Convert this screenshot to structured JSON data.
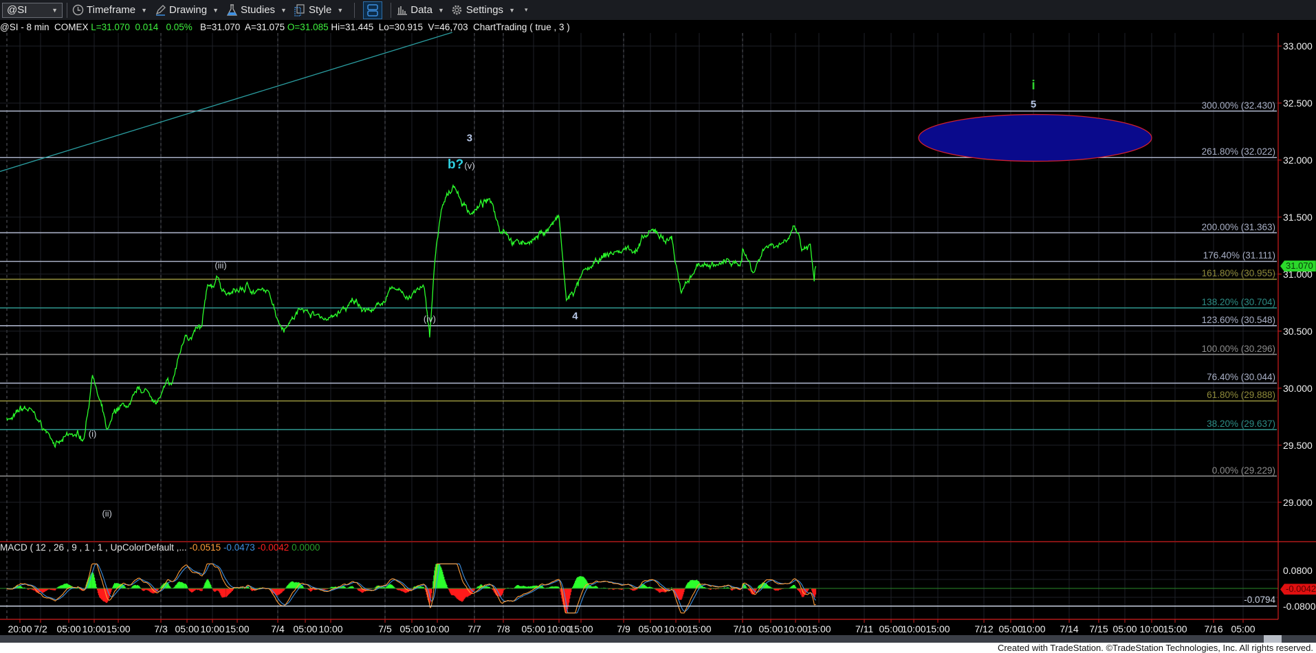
{
  "toolbar": {
    "symbol": "@SI",
    "items": [
      {
        "label": "Timeframe",
        "icon": "clock-icon"
      },
      {
        "label": "Drawing",
        "icon": "pen-icon"
      },
      {
        "label": "Studies",
        "icon": "flask-icon"
      },
      {
        "label": "Style",
        "icon": "style-icon"
      },
      {
        "label": "Data",
        "icon": "bar-chart-icon"
      },
      {
        "label": "Settings",
        "icon": "gear-icon"
      }
    ]
  },
  "info": {
    "symbol_line": "@SI - 8 min  COMEX ",
    "last": "L=31.070",
    "change": "0.014",
    "change_pct": "0.05%",
    "bid_ask": "B=31.070  A=31.075 ",
    "open": "O=31.085",
    "rest": " Hi=31.445  Lo=30.915  V=46,703  ChartTrading ( true , 3 )"
  },
  "colors": {
    "price": "#2bff2b",
    "macd": "#ff9c38",
    "signal": "#3d8fe0",
    "hist_up": "#2bff2b",
    "hist_down": "#ff1a1a",
    "axis": "#d21f1f",
    "ellipse_fill": "#0a0a8c",
    "ellipse_stroke": "#d02030",
    "trendline": "#2a9da0"
  },
  "chart_data": {
    "type": "line",
    "price_axis": {
      "ticks": [
        "33.000",
        "32.500",
        "32.000",
        "31.500",
        "31.000",
        "30.500",
        "30.000",
        "29.500",
        "29.000"
      ],
      "range": [
        28.7,
        33.15
      ]
    },
    "time_axis": {
      "ticks": [
        "20:00",
        "7/2",
        "05:00",
        "10:00",
        "15:00",
        "7/3",
        "05:00",
        "10:00",
        "15:00",
        "7/4",
        "05:00",
        "10:00",
        "7/5",
        "05:00",
        "10:00",
        "7/7",
        "7/8",
        "05:00",
        "10:00",
        "15:00",
        "7/9",
        "05:00",
        "10:00",
        "15:00",
        "7/10",
        "05:00",
        "10:00",
        "15:00",
        "7/11",
        "05:00",
        "10:00",
        "15:00",
        "7/12",
        "05:00",
        "10:00",
        "7/14",
        "7/15",
        "05:00",
        "10:00",
        "15:00",
        "7/16",
        "05:00"
      ]
    },
    "last_price": "31.070",
    "price_series": [
      [
        "7/1 16:00",
        29.73
      ],
      [
        "7/1 23:00",
        29.76
      ],
      [
        "7/2 01:00",
        29.61
      ],
      [
        "7/2 06:20",
        29.58
      ],
      [
        "7/2 08:00",
        29.55
      ],
      [
        "7/2 09:40",
        30.13
      ],
      [
        "7/2 12:40",
        29.63
      ],
      [
        "7/2 16:30",
        29.84
      ],
      [
        "7/2 23:00",
        29.87
      ],
      [
        "7/3 02:00",
        30.02
      ],
      [
        "7/3 04:40",
        30.46
      ],
      [
        "7/3 07:50",
        30.53
      ],
      [
        "7/3 09:10",
        30.9
      ],
      [
        "7/3 10:50",
        30.97
      ],
      [
        "7/3 12:50",
        30.83
      ],
      [
        "7/3 22:00",
        30.84
      ],
      [
        "7/4 02:00",
        30.57
      ],
      [
        "7/4 04:20",
        30.7
      ],
      [
        "7/4 09:20",
        30.61
      ],
      [
        "7/4 21:00",
        30.68
      ],
      [
        "7/5 01:50",
        30.87
      ],
      [
        "7/5 07:20",
        30.9
      ],
      [
        "7/5 08:30",
        30.46
      ],
      [
        "7/5 09:50",
        31.27
      ],
      [
        "7/5 11:30",
        31.64
      ],
      [
        "7/5 13:10",
        31.78
      ],
      [
        "7/7 17:10",
        31.53
      ],
      [
        "7/7 21:30",
        31.64
      ],
      [
        "7/8 00:00",
        31.38
      ],
      [
        "7/8 04:00",
        31.27
      ],
      [
        "7/8 10:00",
        31.51
      ],
      [
        "7/8 11:40",
        30.76
      ],
      [
        "7/8 16:20",
        31.05
      ],
      [
        "7/8 23:30",
        31.2
      ],
      [
        "7/9 05:50",
        31.38
      ],
      [
        "7/9 09:10",
        31.33
      ],
      [
        "7/9 11:10",
        30.83
      ],
      [
        "7/9 14:30",
        31.08
      ],
      [
        "7/9 23:30",
        31.08
      ],
      [
        "7/10 00:00",
        31.23
      ],
      [
        "7/10 02:00",
        31.01
      ],
      [
        "7/10 03:50",
        31.23
      ],
      [
        "7/10 09:40",
        31.43
      ],
      [
        "7/10 11:20",
        31.2
      ],
      [
        "7/10 13:10",
        31.25
      ],
      [
        "7/10 14:00",
        30.94
      ],
      [
        "7/10 14:20",
        31.07
      ]
    ],
    "trendline": [
      [
        "7/1 14:00",
        31.9
      ],
      [
        "7/5 13:00",
        33.12
      ]
    ],
    "fib_levels": [
      {
        "label": "300.00% (32.430)",
        "price": 32.43,
        "color": "#a9b0c6"
      },
      {
        "label": "261.80% (32.022)",
        "price": 32.022,
        "color": "#a9b0c6"
      },
      {
        "label": "200.00% (31.363)",
        "price": 31.363,
        "color": "#a9b0c6"
      },
      {
        "label": "176.40% (31.111)",
        "price": 31.111,
        "color": "#a9b0c6"
      },
      {
        "label": "161.80% (30.955)",
        "price": 30.955,
        "color": "#8e8a3a"
      },
      {
        "label": "138.20% (30.704)",
        "price": 30.704,
        "color": "#2d8d86"
      },
      {
        "label": "123.60% (30.548)",
        "price": 30.548,
        "color": "#a9b0c6"
      },
      {
        "label": "100.00% (30.296)",
        "price": 30.296,
        "color": "#8c8c8c"
      },
      {
        "label": "76.40% (30.044)",
        "price": 30.044,
        "color": "#a9b0c6"
      },
      {
        "label": "61.80% (29.888)",
        "price": 29.888,
        "color": "#8e8a3a"
      },
      {
        "label": "38.20% (29.637)",
        "price": 29.637,
        "color": "#2d8d86"
      },
      {
        "label": "0.00% (29.229)",
        "price": 29.229,
        "color": "#8c8c8c"
      }
    ],
    "target_zone": {
      "price_top": 32.4,
      "price_bottom": 31.99,
      "time_start": "7/11 11:00",
      "time_end": "7/15 10:00"
    },
    "wave_labels": [
      {
        "text": "(i)",
        "t": "7/2 09:40",
        "price": 29.6,
        "color": "#c8cdd6"
      },
      {
        "text": "(ii)",
        "t": "7/2 12:40",
        "price": 28.9,
        "color": "#c8cdd6"
      },
      {
        "text": "(iii)",
        "t": "7/3 11:40",
        "price": 31.08,
        "color": "#c8cdd6"
      },
      {
        "text": "(iv)",
        "t": "7/5 08:30",
        "price": 30.61,
        "color": "#c8cdd6"
      },
      {
        "text": "(v)",
        "t": "7/7 17:00",
        "price": 31.95,
        "color": "#c8cdd6"
      },
      {
        "text": "3",
        "t": "7/7 16:40",
        "price": 32.19,
        "color": "#b8c8e8",
        "bold": true
      },
      {
        "text": "b?",
        "t": "7/5 13:40",
        "price": 31.96,
        "color": "#2fd0e0",
        "bold": true,
        "big": true
      },
      {
        "text": "4",
        "t": "7/8 13:40",
        "price": 30.63,
        "color": "#b8c8e8",
        "bold": true
      },
      {
        "text": "i",
        "t": "7/12 10:00",
        "price": 32.65,
        "color": "#2fd02f",
        "bold": true,
        "big": true
      },
      {
        "text": "5",
        "t": "7/12 10:00",
        "price": 32.49,
        "color": "#b8c8e8",
        "bold": true
      }
    ],
    "macd": {
      "label": "MACD ( 12 , 26 , 9 , 1 , 1 , UpColorDefault ,...",
      "values": [
        "-0.0515",
        "-0.0473",
        "-0.0042",
        "0.0000"
      ],
      "axis_ticks": [
        "0.0800",
        "-0.0800"
      ],
      "reference_level": "-0.0794",
      "current": "-0.0042"
    }
  },
  "footer": "Created with TradeStation. ©TradeStation Technologies, Inc. All rights reserved."
}
